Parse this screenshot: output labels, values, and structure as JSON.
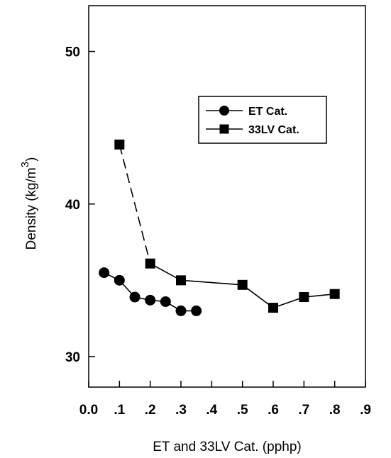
{
  "chart_data": {
    "type": "line",
    "xlabel": "ET and 33LV Cat. (pphp)",
    "ylabel": "Density (kg/m",
    "ylabel_superscript": "3",
    "ylabel_suffix": ")",
    "xlim": [
      0.0,
      0.9
    ],
    "ylim": [
      28,
      53
    ],
    "x_ticks": [
      0.0,
      0.1,
      0.2,
      0.3,
      0.4,
      0.5,
      0.6,
      0.7,
      0.8,
      0.9
    ],
    "x_tick_labels": [
      "0.0",
      ".1",
      ".2",
      ".3",
      ".4",
      ".5",
      ".6",
      ".7",
      ".8",
      ".9"
    ],
    "y_ticks": [
      30,
      40,
      50
    ],
    "y_tick_labels": [
      "30",
      "40",
      "50"
    ],
    "grid": false,
    "legend_position": "upper-right",
    "series": [
      {
        "name": "ET Cat.",
        "marker": "circle",
        "line_style": "solid",
        "color": "#000000",
        "x": [
          0.05,
          0.1,
          0.15,
          0.2,
          0.25,
          0.3,
          0.35
        ],
        "values": [
          35.5,
          35.0,
          33.9,
          33.7,
          33.6,
          33.0,
          33.0
        ]
      },
      {
        "name": "33LV Cat.",
        "marker": "square",
        "line_style": "dashed-then-solid",
        "color": "#000000",
        "x": [
          0.1,
          0.2,
          0.3,
          0.5,
          0.6,
          0.7,
          0.8
        ],
        "values": [
          43.9,
          36.1,
          35.0,
          34.7,
          33.2,
          33.9,
          34.1
        ]
      }
    ]
  }
}
